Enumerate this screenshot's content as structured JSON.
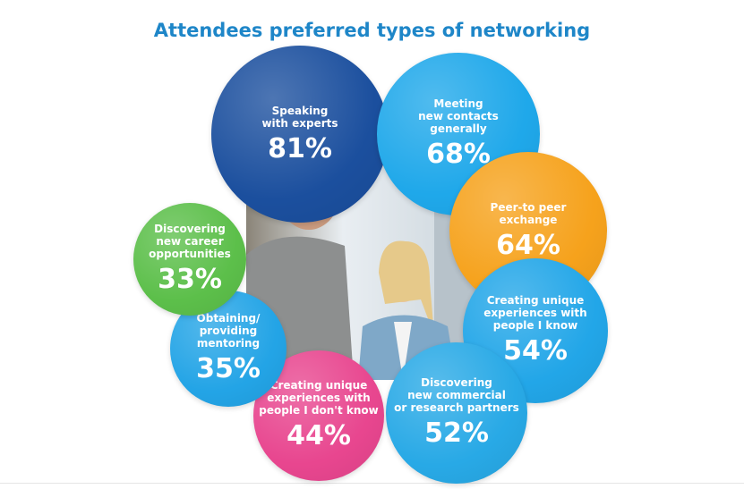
{
  "chart_data": {
    "type": "bubble",
    "title": "Attendees preferred types of networking",
    "categories": [
      "Speaking\nwith experts",
      "Meeting\nnew contacts\ngenerally",
      "Peer-to peer\nexchange",
      "Creating unique\nexperiences with\npeople I know",
      "Discovering\nnew commercial\nor research partners",
      "Creating unique\nexperiences with\npeople I don't know",
      "Obtaining/\nproviding\nmentoring",
      "Discovering\nnew career\nopportunities"
    ],
    "values": [
      81,
      68,
      64,
      54,
      52,
      44,
      35,
      33
    ],
    "value_labels": [
      "81%",
      "68%",
      "64%",
      "54%",
      "52%",
      "44%",
      "35%",
      "33%"
    ],
    "colors": [
      "#1b4f9e",
      "#1fa8ea",
      "#f6a21c",
      "#22a6e8",
      "#28a9e6",
      "#e8468f",
      "#23a4e6",
      "#5cbf4a"
    ]
  }
}
